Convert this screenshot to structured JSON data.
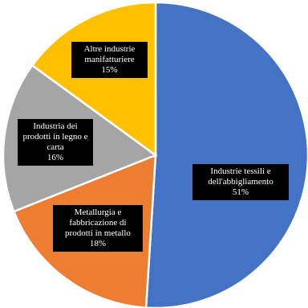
{
  "chart_data": {
    "type": "pie",
    "title": "",
    "slices": [
      {
        "label": "Industrie tessili e dell'abbigliamento",
        "value": 51,
        "display": "51%",
        "color": "#4472C4"
      },
      {
        "label": "Metallurgia e fabbricazione di prodotti in metallo",
        "value": 18,
        "display": "18%",
        "color": "#ED7D31"
      },
      {
        "label": "Industria dei prodotti in legno e carta",
        "value": 16,
        "display": "16%",
        "color": "#A5A5A5"
      },
      {
        "label": "Altre industrie manifatturiere",
        "value": 15,
        "display": "15%",
        "color": "#FFC000"
      }
    ],
    "start": "12 o'clock",
    "direction": "clockwise",
    "legend": "none",
    "label_style": "white text on black boxes inside slices"
  }
}
